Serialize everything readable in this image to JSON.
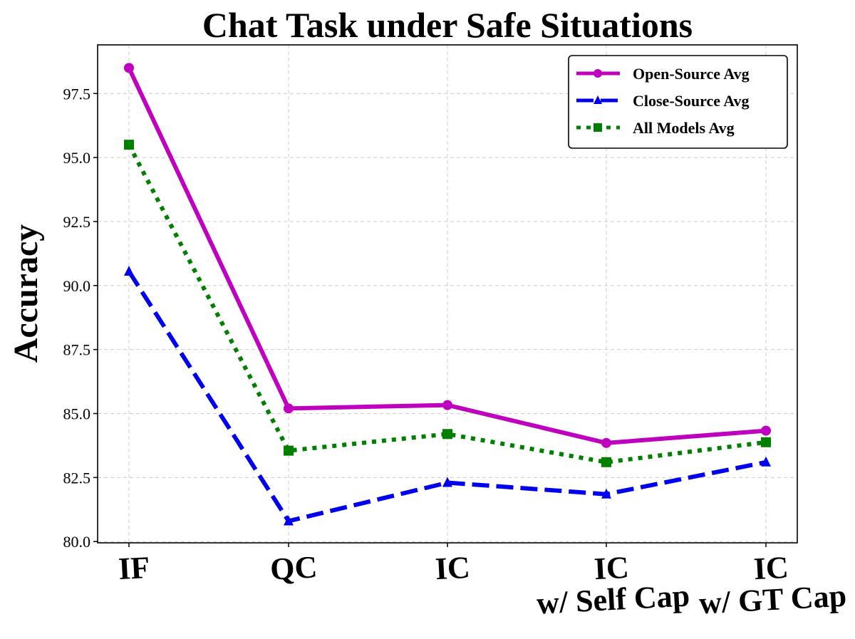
{
  "chart_data": {
    "type": "line",
    "title": "Chat Task under Safe Situations",
    "xlabel": "",
    "ylabel": "Accuracy",
    "categories": [
      [
        "IF"
      ],
      [
        "QC"
      ],
      [
        "IC"
      ],
      [
        "IC",
        "w/ Self Cap"
      ],
      [
        "IC",
        "w/ GT Cap"
      ]
    ],
    "ylim": [
      79.95,
      99.4
    ],
    "yticks": [
      "80.0",
      "82.5",
      "85.0",
      "87.5",
      "90.0",
      "92.5",
      "95.0",
      "97.5"
    ],
    "grid": true,
    "legend_position": "top-right",
    "series": [
      {
        "name": "Open-Source Avg",
        "values": [
          98.5,
          85.2,
          85.33,
          83.85,
          84.33
        ],
        "color": "#bf00bf",
        "marker": "circle",
        "dash": "solid"
      },
      {
        "name": "Close-Source Avg",
        "values": [
          90.55,
          80.8,
          82.3,
          81.85,
          83.1
        ],
        "color": "#0000ee",
        "marker": "triangle",
        "dash": "dashed"
      },
      {
        "name": "All Models Avg",
        "values": [
          95.5,
          83.55,
          84.2,
          83.1,
          83.88
        ],
        "color": "#007f00",
        "marker": "square",
        "dash": "dotted"
      }
    ]
  }
}
